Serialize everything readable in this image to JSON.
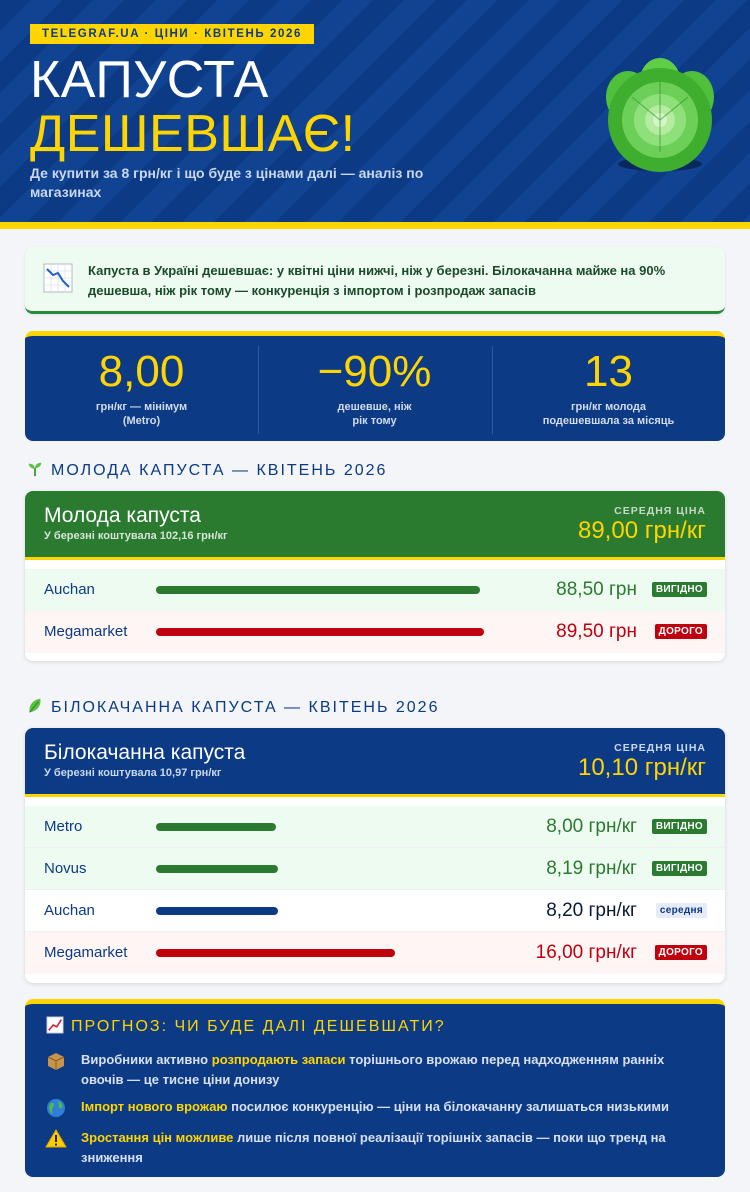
{
  "header": {
    "tag": "TELEGRAF.UA · ЦІНИ · КВІТЕНЬ 2026",
    "title_line1": "КАПУСТА",
    "title_line2": "ДЕШЕВШАЄ!",
    "subtitle": "Де купити за 8 грн/кг і що буде з цінами далі — аналіз по магазинах"
  },
  "alert": {
    "text": "Капуста в Україні дешевшає: у квітні ціни нижчі, ніж у березні. Білокачанна майже на 90% дешевша, ніж рік тому — конкуренція з імпортом і розпродаж запасів"
  },
  "stats": [
    {
      "value": "8,00",
      "label_line1": "грн/кг — мінімум",
      "label_line2": "(Metro)"
    },
    {
      "value": "−90%",
      "label_line1": "дешевше, ніж",
      "label_line2": "рік тому"
    },
    {
      "value": "13",
      "label_line1": "грн/кг молода",
      "label_line2": "подешевшала за місяць"
    }
  ],
  "sections": {
    "young_title": "МОЛОДА КАПУСТА — КВІТЕНЬ 2026",
    "white_title": "БІЛОКАЧАННА КАПУСТА — КВІТЕНЬ 2026"
  },
  "young_card": {
    "name": "Молода капуста",
    "sub": "У березні коштувала 102,16 грн/кг",
    "avg_label": "СЕРЕДНЯ ЦІНА",
    "avg_value": "89,00 грн/кг",
    "rows": [
      {
        "store": "Auchan",
        "price": "88,50 грн",
        "badge": "ВИГІДНО",
        "level": 0.989
      },
      {
        "store": "Megamarket",
        "price": "89,50 грн",
        "badge": "ДОРОГО",
        "level": 1.0
      }
    ]
  },
  "white_card": {
    "name": "Білокачанна капуста",
    "sub": "У березні коштувала 10,97 грн/кг",
    "avg_label": "СЕРЕДНЯ ЦІНА",
    "avg_value": "10,10 грн/кг",
    "rows": [
      {
        "store": "Metro",
        "price": "8,00 грн/кг",
        "badge": "ВИГІДНО",
        "level": 0.5
      },
      {
        "store": "Novus",
        "price": "8,19 грн/кг",
        "badge": "ВИГІДНО",
        "level": 0.512
      },
      {
        "store": "Auchan",
        "price": "8,20 грн/кг",
        "badge": "середня",
        "level": 0.5125
      },
      {
        "store": "Megamarket",
        "price": "16,00 грн/кг",
        "badge": "ДОРОГО",
        "level": 1.0
      }
    ]
  },
  "forecast": {
    "title": "ПРОГНОЗ: ЧИ БУДЕ ДАЛІ ДЕШЕВШАТИ?",
    "item1": {
      "pre": "Виробники активно ",
      "hl": "розпродають запаси",
      "post": " торішнього врожаю перед надходженням ранніх овочів — це тисне ціни донизу"
    },
    "item2": {
      "hl": "Імпорт нового врожаю",
      "post": " посилює конкуренцію — ціни на білокачанну залишаться низькими"
    },
    "item3": {
      "hl": "Зростання цін можливе",
      "post": " лише після повної реалізації торішніх запасів — поки що тренд на зниження"
    }
  },
  "colors": {
    "navy": "#0c3a85",
    "yellow": "#ffd500",
    "green": "#2a7a2f",
    "red": "#c0000e"
  }
}
